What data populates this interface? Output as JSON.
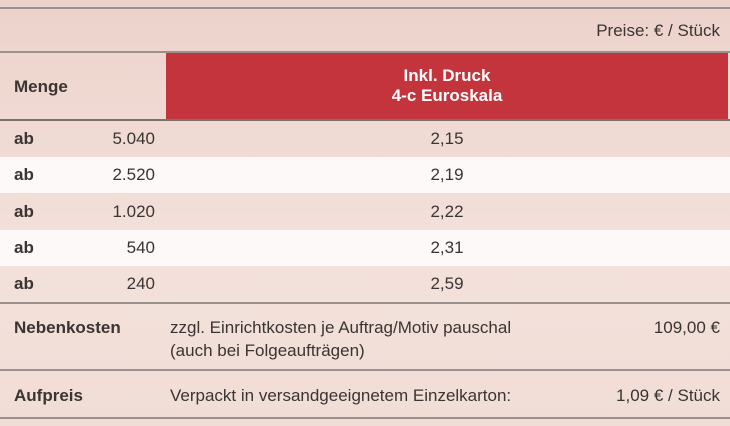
{
  "header": {
    "price_unit": "Preise: € / Stück"
  },
  "table": {
    "header": [
      "Menge",
      "Inkl. Druck",
      "4-c Euroskala"
    ],
    "rows": [
      [
        "ab",
        "5.040",
        "2,15"
      ],
      [
        "ab",
        "2.520",
        "2,19"
      ],
      [
        "ab",
        "1.020",
        "2,22"
      ],
      [
        "ab",
        "540",
        "2,31"
      ],
      [
        "ab",
        "240",
        "2,59"
      ]
    ]
  },
  "extras": [
    {
      "label": "Nebenkosten",
      "text": [
        "zzgl. Einrichtkosten je Auftrag/Motiv pauschal",
        "(auch bei Folgeaufträgen)"
      ],
      "price": "109,00 €"
    },
    {
      "label": "Aufpreis",
      "text": [
        "Verpackt in versandgeeignetem Einzelkarton:"
      ],
      "price": "1,09 € / Stück"
    }
  ]
}
